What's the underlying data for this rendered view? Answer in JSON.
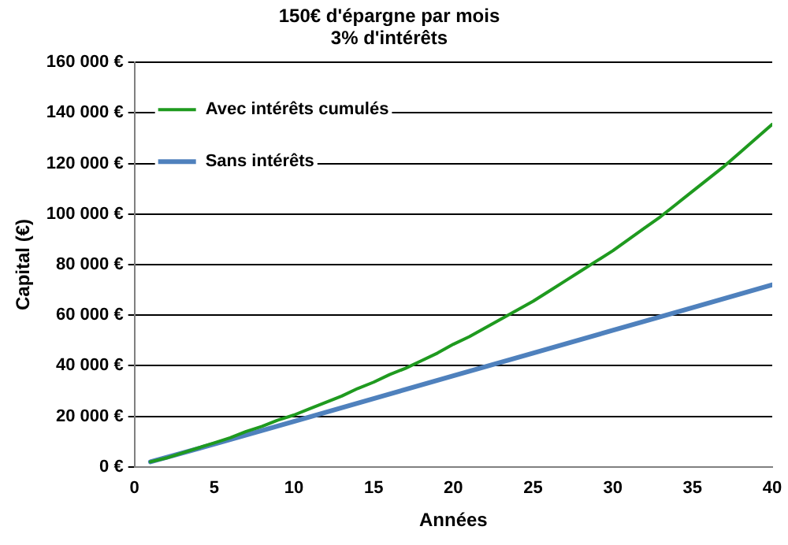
{
  "chart_data": {
    "type": "line",
    "title": [
      "150€ d'épargne par mois",
      "3% d'intérêts"
    ],
    "xlabel": "Années",
    "ylabel": "Capital (€)",
    "xlim": [
      0,
      40
    ],
    "xticks": [
      0,
      5,
      10,
      15,
      20,
      25,
      30,
      35,
      40
    ],
    "ylim": [
      0,
      160000
    ],
    "yticks": [
      {
        "value": 0,
        "label": "0 €"
      },
      {
        "value": 20000,
        "label": "20 000 €"
      },
      {
        "value": 40000,
        "label": "40 000 €"
      },
      {
        "value": 60000,
        "label": "60 000 €"
      },
      {
        "value": 80000,
        "label": "80 000 €"
      },
      {
        "value": 100000,
        "label": "100 000 €"
      },
      {
        "value": 120000,
        "label": "120 000 €"
      },
      {
        "value": 140000,
        "label": "140 000 €"
      },
      {
        "value": 160000,
        "label": "160 000 €"
      }
    ],
    "grid": "y",
    "legend": "top left",
    "marker": "none",
    "line_style": "solid",
    "series": [
      {
        "name": "Avec intérêts cumulés",
        "color": "#1f9a1f",
        "x": [
          1,
          2,
          3,
          4,
          5,
          6,
          7,
          8,
          9,
          10,
          11,
          12,
          13,
          14,
          15,
          16,
          17,
          18,
          19,
          20,
          21,
          22,
          23,
          24,
          25,
          26,
          27,
          28,
          29,
          30,
          31,
          32,
          33,
          34,
          35,
          36,
          37,
          38,
          39,
          40
        ],
        "values": [
          2000,
          3500,
          5500,
          7500,
          9500,
          11500,
          14000,
          16000,
          18500,
          20500,
          23000,
          25500,
          28000,
          31000,
          33500,
          36500,
          39000,
          42000,
          45000,
          48500,
          51500,
          55000,
          58500,
          62000,
          65500,
          69500,
          73500,
          77500,
          81500,
          85500,
          90000,
          94500,
          99000,
          104000,
          109000,
          114000,
          119000,
          124500,
          130000,
          135500
        ]
      },
      {
        "name": "Sans intérêts",
        "color": "#4f81bd",
        "x": [
          1,
          5,
          10,
          15,
          20,
          25,
          30,
          35,
          40
        ],
        "values": [
          2000,
          9000,
          18000,
          27000,
          36000,
          45000,
          54000,
          63000,
          72000
        ]
      }
    ]
  }
}
